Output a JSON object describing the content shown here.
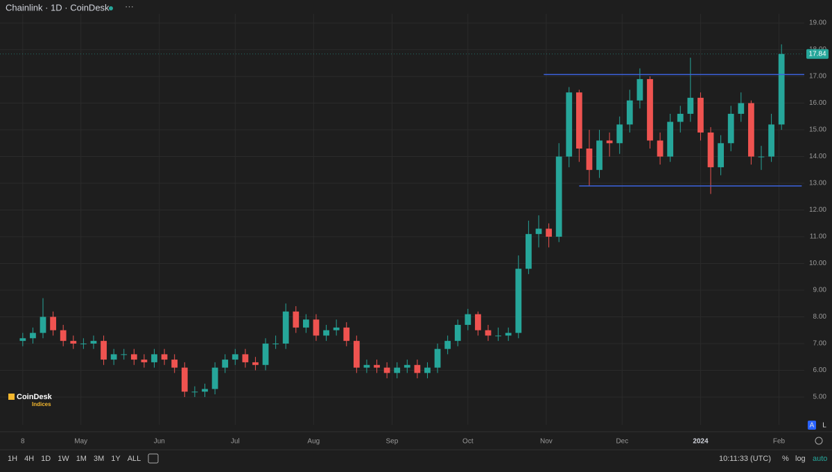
{
  "chart_data": {
    "type": "candlestick",
    "title": "Chainlink · 1D · CoinDesk",
    "x": [
      0,
      4,
      8,
      12,
      16,
      20,
      24,
      28,
      32,
      36,
      40,
      44,
      48,
      52,
      56,
      60,
      64,
      68,
      72,
      76,
      80,
      84,
      88,
      92,
      96,
      100,
      104,
      108,
      112,
      116,
      120,
      124,
      128,
      132,
      136,
      140,
      144,
      148,
      152,
      156,
      160,
      164,
      168,
      172,
      176,
      180,
      184,
      188,
      192,
      196,
      200,
      204,
      208,
      212,
      216,
      220,
      224,
      228,
      232,
      236,
      240,
      244,
      248,
      252,
      256,
      260,
      264,
      268,
      272,
      276,
      280,
      284,
      288,
      292,
      296,
      300
    ],
    "open": [
      7.1,
      7.2,
      7.4,
      8.0,
      7.5,
      7.1,
      7.0,
      7.0,
      7.1,
      6.4,
      6.6,
      6.6,
      6.4,
      6.3,
      6.6,
      6.4,
      6.1,
      5.2,
      5.2,
      5.3,
      6.1,
      6.4,
      6.6,
      6.3,
      6.2,
      7.0,
      7.0,
      8.2,
      7.6,
      7.9,
      7.3,
      7.5,
      7.6,
      7.1,
      6.1,
      6.2,
      6.1,
      5.9,
      6.1,
      6.2,
      5.9,
      6.1,
      6.8,
      7.1,
      7.7,
      8.1,
      7.5,
      7.3,
      7.3,
      7.4,
      9.8,
      11.1,
      11.3,
      11.0,
      14.0,
      16.4,
      14.3,
      13.5,
      14.6,
      14.5,
      15.2,
      16.1,
      16.9,
      14.6,
      14.0,
      15.3,
      15.6,
      16.2,
      14.9,
      13.6,
      14.5,
      15.6,
      16.0,
      14.0,
      14.0,
      15.2
    ],
    "high": [
      7.4,
      7.6,
      8.7,
      8.2,
      7.7,
      7.3,
      7.2,
      7.3,
      7.3,
      6.8,
      6.8,
      6.8,
      6.6,
      6.8,
      6.8,
      6.6,
      6.3,
      5.4,
      5.5,
      6.3,
      6.6,
      6.8,
      6.8,
      6.5,
      7.2,
      7.3,
      8.5,
      8.4,
      8.1,
      8.1,
      7.7,
      7.9,
      7.8,
      7.3,
      6.4,
      6.4,
      6.3,
      6.3,
      6.4,
      6.4,
      6.3,
      7.0,
      7.3,
      7.9,
      8.3,
      8.2,
      7.7,
      7.6,
      7.6,
      10.3,
      11.6,
      11.8,
      11.5,
      14.5,
      16.6,
      16.5,
      15.0,
      15.0,
      14.9,
      15.5,
      16.5,
      17.3,
      17.0,
      14.9,
      15.6,
      15.9,
      17.7,
      16.4,
      15.1,
      14.8,
      15.9,
      16.4,
      16.1,
      14.4,
      15.6,
      18.2
    ],
    "low": [
      6.9,
      7.0,
      7.2,
      7.3,
      6.9,
      6.8,
      6.8,
      6.8,
      6.2,
      6.2,
      6.4,
      6.2,
      6.1,
      6.1,
      6.2,
      5.9,
      5.0,
      5.0,
      5.0,
      5.1,
      5.9,
      6.2,
      6.1,
      6.0,
      6.0,
      6.8,
      6.8,
      7.4,
      7.4,
      7.1,
      7.1,
      7.3,
      6.9,
      5.9,
      5.9,
      5.9,
      5.7,
      5.7,
      5.9,
      5.7,
      5.7,
      5.9,
      6.6,
      6.9,
      7.5,
      7.3,
      7.1,
      7.1,
      7.1,
      7.2,
      9.6,
      10.6,
      10.6,
      10.8,
      13.6,
      13.8,
      12.9,
      13.2,
      14.0,
      14.1,
      14.9,
      15.8,
      14.3,
      13.7,
      13.8,
      14.9,
      15.3,
      14.6,
      12.6,
      13.3,
      14.2,
      15.3,
      13.7,
      13.5,
      13.8,
      15.0
    ],
    "close": [
      7.2,
      7.4,
      8.0,
      7.5,
      7.1,
      7.0,
      7.0,
      7.1,
      6.4,
      6.6,
      6.6,
      6.4,
      6.3,
      6.6,
      6.4,
      6.1,
      5.2,
      5.2,
      5.3,
      6.1,
      6.4,
      6.6,
      6.3,
      6.2,
      7.0,
      7.0,
      8.2,
      7.6,
      7.9,
      7.3,
      7.5,
      7.6,
      7.1,
      6.1,
      6.2,
      6.1,
      5.9,
      6.1,
      6.2,
      5.9,
      6.1,
      6.8,
      7.1,
      7.7,
      8.1,
      7.5,
      7.3,
      7.3,
      7.4,
      9.8,
      11.1,
      11.3,
      11.0,
      14.0,
      16.4,
      14.3,
      13.5,
      14.6,
      14.5,
      15.2,
      16.1,
      16.9,
      14.6,
      14.0,
      15.3,
      15.6,
      16.2,
      14.9,
      13.6,
      14.5,
      15.6,
      16.0,
      14.0,
      14.0,
      15.2,
      17.84
    ],
    "up_color": "#26a69a",
    "down_color": "#ef5350",
    "xlim": [
      -9,
      309
    ],
    "xticks": [
      {
        "value": 0,
        "label": "8"
      },
      {
        "value": 23,
        "label": "May"
      },
      {
        "value": 54,
        "label": "Jun"
      },
      {
        "value": 84,
        "label": "Jul"
      },
      {
        "value": 115,
        "label": "Aug"
      },
      {
        "value": 146,
        "label": "Sep"
      },
      {
        "value": 176,
        "label": "Oct"
      },
      {
        "value": 207,
        "label": "Nov"
      },
      {
        "value": 237,
        "label": "Dec"
      },
      {
        "value": 268,
        "label": "2024"
      },
      {
        "value": 299,
        "label": "Feb"
      }
    ],
    "ylim": [
      3.96,
      19.34
    ],
    "yticks": [
      {
        "value": 5,
        "label": "5.00"
      },
      {
        "value": 6,
        "label": "6.00"
      },
      {
        "value": 7,
        "label": "7.00"
      },
      {
        "value": 8,
        "label": "8.00"
      },
      {
        "value": 9,
        "label": "9.00"
      },
      {
        "value": 10,
        "label": "10.00"
      },
      {
        "value": 11,
        "label": "11.00"
      },
      {
        "value": 12,
        "label": "12.00"
      },
      {
        "value": 13,
        "label": "13.00"
      },
      {
        "value": 14,
        "label": "14.00"
      },
      {
        "value": 15,
        "label": "15.00"
      },
      {
        "value": 16,
        "label": "16.00"
      },
      {
        "value": 17,
        "label": "17.00"
      },
      {
        "value": 18,
        "label": "18.00"
      },
      {
        "value": 19,
        "label": "19.00"
      }
    ],
    "grid": true,
    "lines": [
      {
        "y": 17.07,
        "x": [
          206,
          309
        ],
        "color": "#3d63e0"
      },
      {
        "y": 12.9,
        "x": [
          220,
          308
        ],
        "color": "#3d63e0"
      }
    ]
  },
  "ui": {
    "logo": [
      "CoinDesk",
      "Indices"
    ],
    "timeframes": [
      "1H",
      "4H",
      "1D",
      "1W",
      "1M",
      "3M",
      "1Y",
      "ALL"
    ],
    "clock": "10:11:33 (UTC)",
    "scale_options": [
      "%",
      "log",
      "auto"
    ],
    "axis_buttons": [
      "A",
      "L"
    ]
  }
}
